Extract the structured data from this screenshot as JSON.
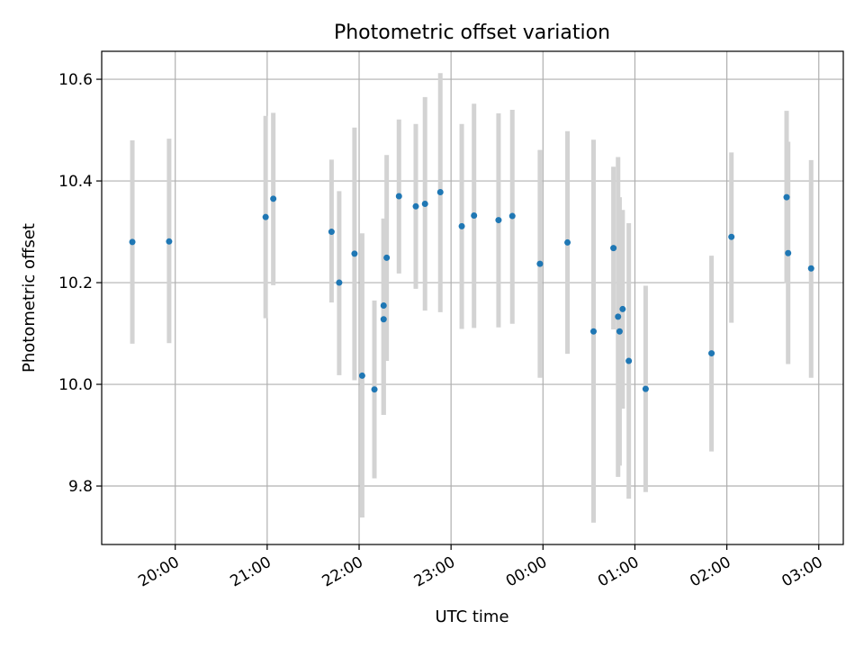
{
  "chart_data": {
    "type": "scatter",
    "title": "Photometric offset variation",
    "xlabel": "UTC time",
    "ylabel": "Photometric offset",
    "ylim": [
      9.685,
      10.655
    ],
    "xlim": [
      "19:12",
      "03:16"
    ],
    "grid": true,
    "x_ticks": [
      "20:00",
      "21:00",
      "22:00",
      "23:00",
      "00:00",
      "01:00",
      "02:00",
      "03:00"
    ],
    "y_ticks": [
      "9.8",
      "10.0",
      "10.2",
      "10.4",
      "10.6"
    ],
    "colors": {
      "point": "#1f77b4",
      "errorbar": "#d3d3d3",
      "grid": "#b0b0b0"
    },
    "points": [
      {
        "x": "19:32",
        "y": 10.28,
        "yerr_low": 10.08,
        "yerr_high": 10.48
      },
      {
        "x": "19:56",
        "y": 10.281,
        "yerr_low": 10.081,
        "yerr_high": 10.483
      },
      {
        "x": "20:59",
        "y": 10.329,
        "yerr_low": 10.13,
        "yerr_high": 10.528
      },
      {
        "x": "21:04",
        "y": 10.365,
        "yerr_low": 10.195,
        "yerr_high": 10.534
      },
      {
        "x": "21:42",
        "y": 10.3,
        "yerr_low": 10.161,
        "yerr_high": 10.442
      },
      {
        "x": "21:47",
        "y": 10.2,
        "yerr_low": 10.018,
        "yerr_high": 10.38
      },
      {
        "x": "21:57",
        "y": 10.257,
        "yerr_low": 10.008,
        "yerr_high": 10.505
      },
      {
        "x": "22:02",
        "y": 10.017,
        "yerr_low": 9.738,
        "yerr_high": 10.297
      },
      {
        "x": "22:10",
        "y": 9.99,
        "yerr_low": 9.815,
        "yerr_high": 10.165
      },
      {
        "x": "22:16",
        "y": 10.128,
        "yerr_low": 9.94,
        "yerr_high": 10.326
      },
      {
        "x": "22:16",
        "y": 10.155,
        "yerr_low": 9.94,
        "yerr_high": 10.326
      },
      {
        "x": "22:18",
        "y": 10.249,
        "yerr_low": 10.046,
        "yerr_high": 10.451
      },
      {
        "x": "22:26",
        "y": 10.37,
        "yerr_low": 10.218,
        "yerr_high": 10.521
      },
      {
        "x": "22:37",
        "y": 10.35,
        "yerr_low": 10.188,
        "yerr_high": 10.512
      },
      {
        "x": "22:43",
        "y": 10.355,
        "yerr_low": 10.145,
        "yerr_high": 10.565
      },
      {
        "x": "22:53",
        "y": 10.378,
        "yerr_low": 10.142,
        "yerr_high": 10.612
      },
      {
        "x": "23:07",
        "y": 10.311,
        "yerr_low": 10.109,
        "yerr_high": 10.512
      },
      {
        "x": "23:15",
        "y": 10.332,
        "yerr_low": 10.111,
        "yerr_high": 10.552
      },
      {
        "x": "23:31",
        "y": 10.323,
        "yerr_low": 10.112,
        "yerr_high": 10.533
      },
      {
        "x": "23:40",
        "y": 10.331,
        "yerr_low": 10.119,
        "yerr_high": 10.54
      },
      {
        "x": "23:58",
        "y": 10.237,
        "yerr_low": 10.013,
        "yerr_high": 10.461
      },
      {
        "x": "00:16",
        "y": 10.279,
        "yerr_low": 10.06,
        "yerr_high": 10.498
      },
      {
        "x": "00:33",
        "y": 10.104,
        "yerr_low": 9.728,
        "yerr_high": 10.481
      },
      {
        "x": "00:46",
        "y": 10.268,
        "yerr_low": 10.108,
        "yerr_high": 10.428
      },
      {
        "x": "00:49",
        "y": 10.133,
        "yerr_low": 9.818,
        "yerr_high": 10.447
      },
      {
        "x": "00:50",
        "y": 10.104,
        "yerr_low": 9.84,
        "yerr_high": 10.368
      },
      {
        "x": "00:52",
        "y": 10.148,
        "yerr_low": 9.952,
        "yerr_high": 10.343
      },
      {
        "x": "00:56",
        "y": 10.046,
        "yerr_low": 9.775,
        "yerr_high": 10.317
      },
      {
        "x": "01:07",
        "y": 9.991,
        "yerr_low": 9.788,
        "yerr_high": 10.194
      },
      {
        "x": "01:50",
        "y": 10.061,
        "yerr_low": 9.868,
        "yerr_high": 10.253
      },
      {
        "x": "02:03",
        "y": 10.29,
        "yerr_low": 10.121,
        "yerr_high": 10.456
      },
      {
        "x": "02:39",
        "y": 10.368,
        "yerr_low": 10.199,
        "yerr_high": 10.538
      },
      {
        "x": "02:40",
        "y": 10.258,
        "yerr_low": 10.04,
        "yerr_high": 10.477
      },
      {
        "x": "02:55",
        "y": 10.228,
        "yerr_low": 10.013,
        "yerr_high": 10.441
      }
    ]
  }
}
